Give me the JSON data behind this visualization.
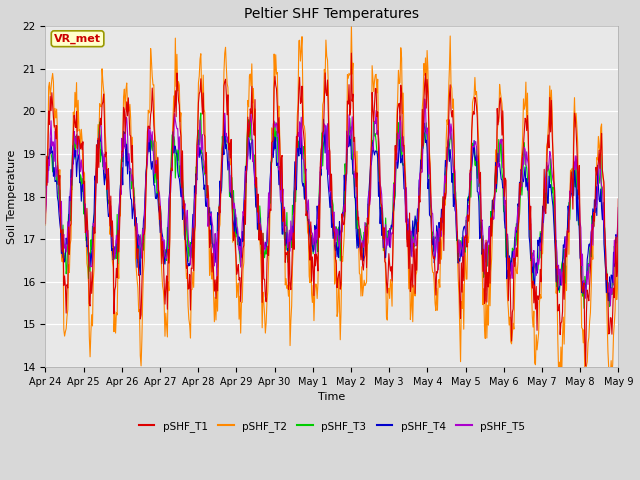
{
  "title": "Peltier SHF Temperatures",
  "xlabel": "Time",
  "ylabel": "Soil Temperature",
  "ylim": [
    14.0,
    22.0
  ],
  "yticks": [
    14.0,
    15.0,
    16.0,
    17.0,
    18.0,
    19.0,
    20.0,
    21.0,
    22.0
  ],
  "annotation_text": "VR_met",
  "annotation_facecolor": "#ffffcc",
  "annotation_edgecolor": "#999900",
  "annotation_textcolor": "#cc0000",
  "fig_facecolor": "#d8d8d8",
  "plot_facecolor": "#e8e8e8",
  "series": [
    {
      "label": "pSHF_T1",
      "color": "#dd0000"
    },
    {
      "label": "pSHF_T2",
      "color": "#ff8800"
    },
    {
      "label": "pSHF_T3",
      "color": "#00cc00"
    },
    {
      "label": "pSHF_T4",
      "color": "#0000cc"
    },
    {
      "label": "pSHF_T5",
      "color": "#aa00cc"
    }
  ],
  "xtick_labels": [
    "Apr 24",
    "Apr 25",
    "Apr 26",
    "Apr 27",
    "Apr 28",
    "Apr 29",
    "Apr 30",
    "May 1",
    "May 2",
    "May 3",
    "May 4",
    "May 5",
    "May 6",
    "May 7",
    "May 8",
    "May 9"
  ],
  "n_days": 15,
  "seed": 12345
}
